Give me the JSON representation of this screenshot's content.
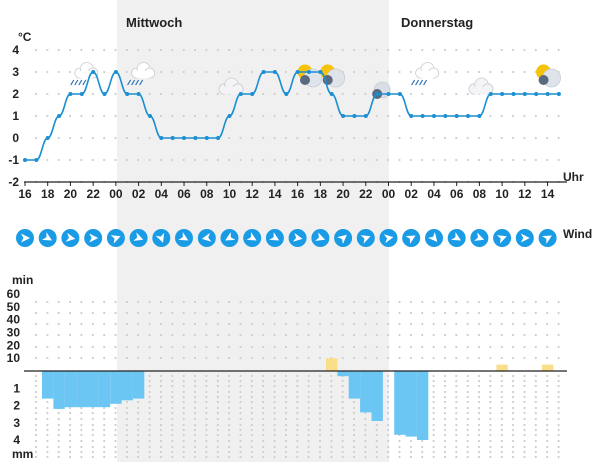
{
  "days": [
    "Mittwoch",
    "Donnerstag"
  ],
  "temp_unit": "°C",
  "time_unit": "Uhr",
  "wind_label": "Wind",
  "precip_duration_unit": "min",
  "precip_amount_unit": "mm",
  "colors": {
    "temp_line": "#1a8fd1",
    "rain_bar": "#6cc6f3",
    "sun_bar": "#f9df8a",
    "wind_circle": "#1a9be6",
    "night_shade": "#f0f0f0",
    "grid_dot": "#cfcfcf"
  },
  "chart_data": [
    {
      "type": "line",
      "name": "temperature",
      "ylabel": "°C",
      "xlabel": "Uhr",
      "ylim": [
        -2,
        4
      ],
      "yticks": [
        -2,
        -1,
        0,
        1,
        2,
        3,
        4
      ],
      "xtick_labels": [
        "16",
        "18",
        "20",
        "22",
        "00",
        "02",
        "04",
        "06",
        "08",
        "10",
        "12",
        "14",
        "16",
        "18",
        "20",
        "22",
        "00",
        "02",
        "04",
        "06",
        "08",
        "10",
        "12",
        "14"
      ],
      "x_hours": [
        16,
        17,
        18,
        19,
        20,
        21,
        22,
        23,
        24,
        25,
        26,
        27,
        28,
        29,
        30,
        31,
        32,
        33,
        34,
        35,
        36,
        37,
        38,
        39,
        40,
        41,
        42,
        43,
        44,
        45,
        46,
        47,
        48,
        49,
        50,
        51,
        52,
        53,
        54,
        55,
        56,
        57,
        58,
        59,
        60,
        61,
        62,
        63
      ],
      "values": [
        -1,
        -1,
        0,
        1,
        2,
        2,
        3,
        2,
        3,
        2,
        2,
        1,
        0,
        0,
        0,
        0,
        0,
        0,
        1,
        2,
        2,
        3,
        3,
        2,
        3,
        3,
        3,
        2,
        1,
        1,
        1,
        2,
        2,
        2,
        1,
        1,
        1,
        1,
        1,
        1,
        1,
        2,
        2,
        2,
        2,
        2,
        2,
        2
      ],
      "weather_icons": [
        {
          "hour": 21,
          "icon": "cloud-rain-icon"
        },
        {
          "hour": 26,
          "icon": "cloud-rain-icon"
        },
        {
          "hour": 34,
          "icon": "cloud-icon"
        },
        {
          "hour": 41,
          "icon": "partly-cloudy-icon"
        },
        {
          "hour": 43,
          "icon": "partly-cloudy-icon"
        },
        {
          "hour": 47,
          "icon": "cloudy-night-icon"
        },
        {
          "hour": 51,
          "icon": "cloud-rain-icon"
        },
        {
          "hour": 56,
          "icon": "cloud-icon"
        },
        {
          "hour": 62,
          "icon": "partly-cloudy-icon"
        }
      ]
    },
    {
      "type": "arrows",
      "name": "wind",
      "hours": [
        16,
        18,
        20,
        22,
        24,
        26,
        28,
        30,
        32,
        34,
        36,
        38,
        40,
        42,
        44,
        46,
        48,
        50,
        52,
        54,
        56,
        58,
        60,
        62
      ],
      "direction_deg": [
        90,
        120,
        100,
        90,
        70,
        110,
        160,
        120,
        260,
        240,
        120,
        120,
        100,
        110,
        50,
        70,
        80,
        60,
        140,
        120,
        110,
        70,
        90,
        60
      ]
    },
    {
      "type": "bar",
      "name": "sunshine_duration",
      "ylabel": "min",
      "ylim": [
        0,
        60
      ],
      "yticks": [
        10,
        20,
        30,
        40,
        50,
        60
      ],
      "hours": [
        16,
        17,
        18,
        19,
        20,
        21,
        22,
        23,
        24,
        25,
        26,
        27,
        28,
        29,
        30,
        31,
        32,
        33,
        34,
        35,
        36,
        37,
        38,
        39,
        40,
        41,
        42,
        43,
        44,
        45,
        46,
        47,
        48,
        49,
        50,
        51,
        52,
        53,
        54,
        55,
        56,
        57,
        58,
        59,
        60,
        61,
        62,
        63
      ],
      "values": [
        0,
        0,
        0,
        0,
        0,
        0,
        0,
        0,
        0,
        0,
        0,
        0,
        0,
        0,
        0,
        0,
        0,
        0,
        0,
        0,
        0,
        0,
        0,
        0,
        0,
        0,
        0,
        10,
        0,
        0,
        0,
        0,
        0,
        0,
        0,
        0,
        0,
        0,
        0,
        0,
        0,
        0,
        5,
        0,
        0,
        0,
        5,
        0
      ]
    },
    {
      "type": "bar",
      "name": "precipitation",
      "ylabel": "mm",
      "ylim": [
        0,
        4
      ],
      "yticks": [
        1,
        2,
        3,
        4
      ],
      "hours": [
        16,
        17,
        18,
        19,
        20,
        21,
        22,
        23,
        24,
        25,
        26,
        27,
        28,
        29,
        30,
        31,
        32,
        33,
        34,
        35,
        36,
        37,
        38,
        39,
        40,
        41,
        42,
        43,
        44,
        45,
        46,
        47,
        48,
        49,
        50,
        51,
        52,
        53,
        54,
        55,
        56,
        57,
        58,
        59,
        60,
        61,
        62,
        63
      ],
      "values": [
        0,
        0,
        1.6,
        2.2,
        2.1,
        2.1,
        2.1,
        2.1,
        1.9,
        1.7,
        1.6,
        0,
        0,
        0,
        0,
        0,
        0,
        0,
        0,
        0,
        0,
        0,
        0,
        0,
        0,
        0,
        0,
        0,
        0.3,
        1.6,
        2.4,
        2.9,
        0,
        3.7,
        3.8,
        4.0,
        0,
        0,
        0,
        0,
        0,
        0,
        0,
        0,
        0,
        0,
        0,
        0
      ]
    }
  ]
}
